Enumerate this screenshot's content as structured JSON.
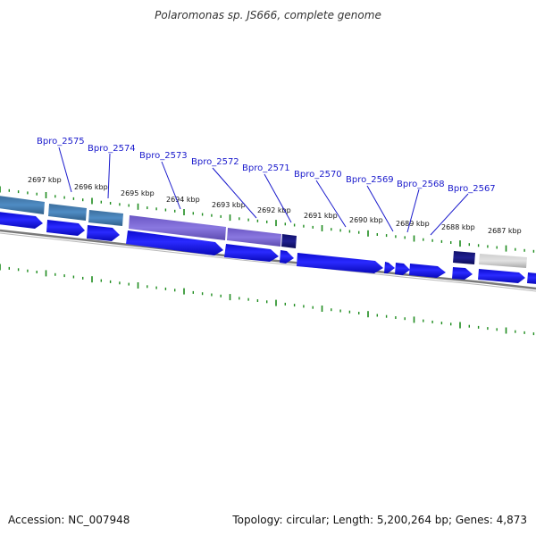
{
  "title": "Polaromonas sp. JS666, complete genome",
  "accession": "Accession: NC_007948",
  "summary": "Topology: circular; Length: 5,200,264 bp; Genes: 4,873",
  "colors": {
    "background": "#ffffff",
    "backbone": "#7a7a7a",
    "tick": "#1e8c1e",
    "gene_label": "#1a1acc",
    "cds_forward": "#1515e6",
    "cog_steelblue": "#4682b4",
    "cog_slateblue": "#7b68d8",
    "cog_navy": "#0b0b6e",
    "cog_gray": "#b4b4b4"
  },
  "kbp_labels": [
    "2697 kbp",
    "2696 kbp",
    "2695 kbp",
    "2694 kbp",
    "2693 kbp",
    "2692 kbp",
    "2691 kbp",
    "2690 kbp",
    "2689 kbp",
    "2688 kbp",
    "2687 kbp"
  ],
  "gene_labels": [
    "Bpro_2575",
    "Bpro_2574",
    "Bpro_2573",
    "Bpro_2572",
    "Bpro_2571",
    "Bpro_2570",
    "Bpro_2569",
    "Bpro_2568",
    "Bpro_2567"
  ]
}
